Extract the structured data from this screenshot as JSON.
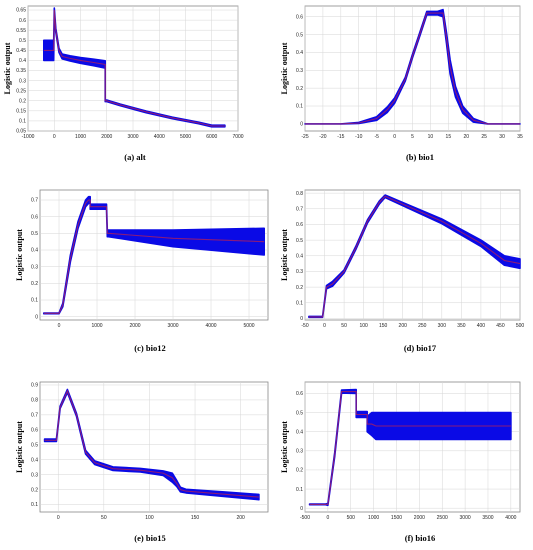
{
  "figure": {
    "colors": {
      "band": "#0a0ae6",
      "line": "#8a1a7a",
      "pink": "#e070e0",
      "grid": "#d6d6d6",
      "frame": "#888888"
    }
  },
  "chart_data": [
    {
      "id": "alt",
      "type": "line",
      "caption": "(a) alt",
      "ylabel": "Logistic output",
      "xlim": [
        -1000,
        7000
      ],
      "ylim": [
        0.05,
        0.67
      ],
      "xticks": [
        -1000,
        0,
        1000,
        2000,
        3000,
        4000,
        5000,
        6000,
        7000
      ],
      "yticks": [
        0.05,
        0.1,
        0.15,
        0.2,
        0.25,
        0.3,
        0.35,
        0.4,
        0.45,
        0.5,
        0.55,
        0.6,
        0.65
      ],
      "x": [
        -400,
        -20,
        -20,
        0,
        60,
        120,
        180,
        300,
        600,
        1000,
        1500,
        1940,
        1940,
        2000,
        2500,
        3500,
        4500,
        5500,
        6000,
        6500
      ],
      "y": [
        0.45,
        0.45,
        0.45,
        0.65,
        0.55,
        0.5,
        0.45,
        0.42,
        0.41,
        0.4,
        0.39,
        0.38,
        0.2,
        0.2,
        0.18,
        0.145,
        0.115,
        0.09,
        0.075,
        0.075
      ],
      "half": [
        0.05,
        0.05,
        0.05,
        0.01,
        0.01,
        0.01,
        0.01,
        0.012,
        0.013,
        0.014,
        0.016,
        0.018,
        0.004,
        0.004,
        0.004,
        0.004,
        0.004,
        0.004,
        0.004,
        0.004
      ]
    },
    {
      "id": "bio1",
      "type": "line",
      "caption": "(b) bio1",
      "ylabel": "Logistic output",
      "xlim": [
        -25,
        35
      ],
      "ylim": [
        -0.04,
        0.66
      ],
      "xticks": [
        -25,
        -20,
        -15,
        -10,
        -5,
        0,
        5,
        10,
        15,
        20,
        25,
        30,
        35
      ],
      "yticks": [
        0.0,
        0.1,
        0.2,
        0.3,
        0.4,
        0.5,
        0.6
      ],
      "x": [
        -25,
        -15,
        -10,
        -5,
        -2,
        0,
        3,
        5,
        7,
        9,
        10,
        12,
        13.5,
        14.5,
        15.5,
        17,
        19,
        22,
        26,
        30,
        35
      ],
      "y": [
        0.0,
        0.0,
        0.005,
        0.03,
        0.08,
        0.13,
        0.25,
        0.38,
        0.5,
        0.62,
        0.62,
        0.62,
        0.62,
        0.48,
        0.32,
        0.18,
        0.08,
        0.02,
        0.0,
        0.0,
        0.0
      ],
      "half": [
        0,
        0,
        0.003,
        0.01,
        0.015,
        0.015,
        0.01,
        0.01,
        0.01,
        0.01,
        0.01,
        0.01,
        0.02,
        0.03,
        0.04,
        0.03,
        0.02,
        0.01,
        0,
        0,
        0
      ]
    },
    {
      "id": "bio12",
      "type": "line",
      "caption": "(c) bio12",
      "ylabel": "Logistic output",
      "xlim": [
        -500,
        5500
      ],
      "ylim": [
        -0.02,
        0.76
      ],
      "xticks": [
        0,
        1000,
        2000,
        3000,
        4000,
        5000
      ],
      "yticks": [
        0.0,
        0.1,
        0.2,
        0.3,
        0.4,
        0.5,
        0.6,
        0.7
      ],
      "x": [
        -400,
        0,
        100,
        300,
        500,
        700,
        780,
        820,
        820,
        1000,
        1250,
        1270,
        1300,
        3000,
        5400
      ],
      "y": [
        0.02,
        0.02,
        0.07,
        0.35,
        0.55,
        0.68,
        0.7,
        0.7,
        0.66,
        0.66,
        0.66,
        0.5,
        0.5,
        0.47,
        0.45
      ],
      "half": [
        0.002,
        0.002,
        0.01,
        0.02,
        0.02,
        0.02,
        0.02,
        0.02,
        0.015,
        0.015,
        0.015,
        0.02,
        0.02,
        0.05,
        0.08
      ]
    },
    {
      "id": "bio17",
      "type": "line",
      "caption": "(d) bio17",
      "ylabel": "Logistic output",
      "xlim": [
        -50,
        500
      ],
      "ylim": [
        -0.01,
        0.82
      ],
      "xticks": [
        -50,
        0,
        50,
        100,
        150,
        200,
        250,
        300,
        350,
        400,
        450,
        500
      ],
      "yticks": [
        0.0,
        0.1,
        0.2,
        0.3,
        0.4,
        0.5,
        0.6,
        0.7,
        0.8
      ],
      "x": [
        -40,
        -5,
        -5,
        5,
        20,
        50,
        80,
        110,
        140,
        155,
        200,
        300,
        400,
        460,
        500
      ],
      "y": [
        0.01,
        0.01,
        0.01,
        0.2,
        0.22,
        0.3,
        0.45,
        0.62,
        0.74,
        0.78,
        0.73,
        0.62,
        0.48,
        0.37,
        0.35
      ],
      "half": [
        0.003,
        0.003,
        0.003,
        0.01,
        0.015,
        0.01,
        0.01,
        0.01,
        0.01,
        0.008,
        0.01,
        0.015,
        0.02,
        0.03,
        0.03
      ]
    },
    {
      "id": "bio15",
      "type": "line",
      "caption": "(e) bio15",
      "ylabel": "Logistic output",
      "xlim": [
        -20,
        230
      ],
      "ylim": [
        0.05,
        0.92
      ],
      "xticks": [
        0,
        50,
        100,
        150,
        200
      ],
      "yticks": [
        0.1,
        0.2,
        0.3,
        0.4,
        0.5,
        0.6,
        0.7,
        0.8,
        0.9
      ],
      "x": [
        -15,
        -2,
        2,
        10,
        20,
        30,
        40,
        60,
        90,
        115,
        125,
        130,
        134,
        140,
        180,
        220
      ],
      "y": [
        0.53,
        0.53,
        0.75,
        0.86,
        0.7,
        0.45,
        0.38,
        0.34,
        0.33,
        0.31,
        0.28,
        0.24,
        0.2,
        0.19,
        0.17,
        0.15
      ],
      "half": [
        0.008,
        0.008,
        0.008,
        0.01,
        0.01,
        0.012,
        0.012,
        0.012,
        0.012,
        0.015,
        0.03,
        0.02,
        0.015,
        0.012,
        0.015,
        0.018
      ]
    },
    {
      "id": "bio16",
      "type": "line",
      "caption": "(f) bio16",
      "ylabel": "Logistic output",
      "xlim": [
        -500,
        4200
      ],
      "ylim": [
        -0.02,
        0.66
      ],
      "xticks": [
        -500,
        0,
        500,
        1000,
        1500,
        2000,
        2500,
        3000,
        3500,
        4000
      ],
      "yticks": [
        0.0,
        0.1,
        0.2,
        0.3,
        0.4,
        0.5,
        0.6
      ],
      "x": [
        -400,
        -50,
        0,
        150,
        300,
        300,
        620,
        620,
        700,
        860,
        860,
        960,
        1050,
        4000
      ],
      "y": [
        0.02,
        0.02,
        0.02,
        0.28,
        0.61,
        0.61,
        0.61,
        0.49,
        0.49,
        0.49,
        0.44,
        0.44,
        0.43,
        0.43
      ],
      "half": [
        0.002,
        0.002,
        0.005,
        0.01,
        0.008,
        0.008,
        0.01,
        0.015,
        0.015,
        0.015,
        0.04,
        0.06,
        0.07,
        0.07
      ]
    }
  ]
}
